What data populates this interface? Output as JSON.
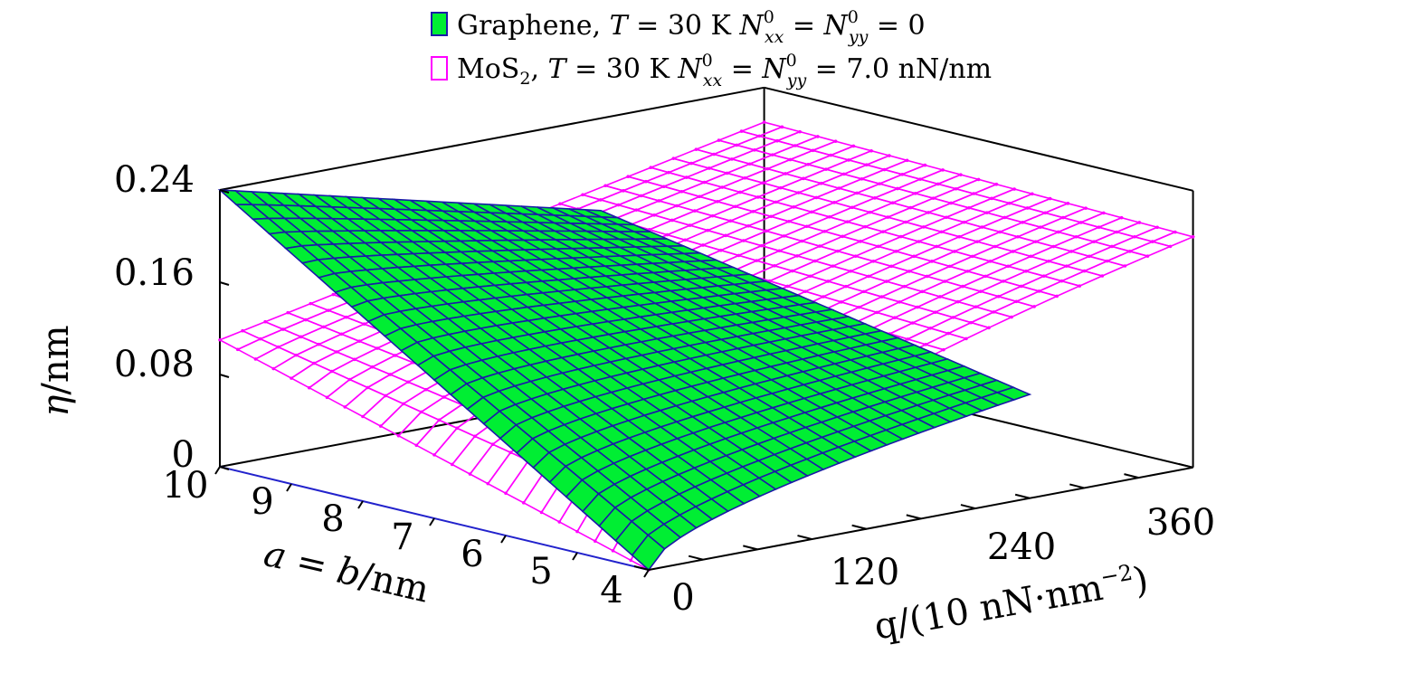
{
  "chart_data": {
    "type": "surface3d",
    "legend": [
      {
        "name": "Graphene, T = 30 K  N⁰xx = N⁰yy = 0",
        "face_color": "#00ee33",
        "edge_color": "#1a1aa8",
        "marker": "filled-square",
        "parts": {
          "pre": "Graphene, ",
          "T": "T",
          "eqT": " = 30 K  ",
          "N1": "N",
          "sup1": "0",
          "sub1": "xx",
          "eqN": " = ",
          "N2": "N",
          "sup2": "0",
          "sub2": "yy",
          "val": " = 0"
        }
      },
      {
        "name": "MoS₂, T = 30 K  N⁰xx = N⁰yy = 7.0 nN/nm",
        "face_color": "none",
        "edge_color": "#ff00ff",
        "marker": "open-square",
        "parts": {
          "pre": "MoS",
          "sub0": "2",
          "post": ", ",
          "T": "T",
          "eqT": " = 30 K  ",
          "N1": "N",
          "sup1": "0",
          "sub1": "xx",
          "eqN": " = ",
          "N2": "N",
          "sup2": "0",
          "sub2": "yy",
          "val": " = 7.0 nN/nm"
        }
      }
    ],
    "axes": {
      "z": {
        "label_sym": "η",
        "label_rest": "/nm",
        "ticks": [
          "0",
          "0.08",
          "0.16",
          "0.24"
        ],
        "range": [
          0,
          0.24
        ]
      },
      "a": {
        "label": "a = b/nm",
        "label_a": "a",
        "label_eq": " = ",
        "label_b": "b",
        "label_rest": "/nm",
        "ticks": [
          "10",
          "9",
          "8",
          "7",
          "6",
          "5",
          "4"
        ],
        "range": [
          4,
          10
        ]
      },
      "q": {
        "label": "q/(10 nN·nm⁻²)",
        "label_main": "q/(10 nN·nm",
        "label_sup": "−2",
        "label_close": ")",
        "ticks": [
          "0",
          "120",
          "240",
          "360"
        ],
        "range": [
          0,
          400
        ]
      }
    },
    "series": [
      {
        "name": "Graphene",
        "q_range": [
          0,
          280
        ],
        "a_range": [
          4,
          10
        ],
        "corners": {
          "q0_a10": 0.24,
          "q0_a4": 0.0,
          "qmax_a10": 0.16,
          "qmax_a4": 0.09
        }
      },
      {
        "name": "MoS2",
        "q_range": [
          0,
          400
        ],
        "a_range": [
          4,
          10
        ],
        "corners": {
          "q0_a10": 0.11,
          "q0_a4": 0.0,
          "qmax_a10": 0.21,
          "qmax_a4": 0.2
        }
      }
    ]
  }
}
